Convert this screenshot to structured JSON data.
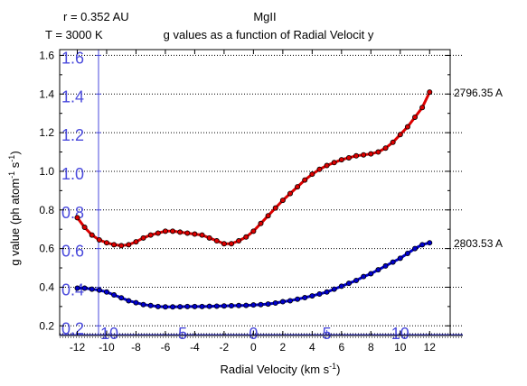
{
  "header": {
    "param_r": "r = 0.352 AU",
    "param_T": "T = 3000 K",
    "species": "MgII",
    "title": "g values as a function of Radial Velocit y"
  },
  "chart_data": {
    "type": "line",
    "xlabel": "Radial Velocity (km s-1)",
    "ylabel": "g value (ph atom-1 s-1)",
    "xlim": [
      -13.2,
      13.4
    ],
    "ylim": [
      0.15,
      1.63
    ],
    "x_ticks": [
      -12,
      -10,
      -8,
      -6,
      -4,
      -2,
      0,
      2,
      4,
      6,
      8,
      10,
      12
    ],
    "y_ticks": [
      0.2,
      0.4,
      0.6,
      0.8,
      1.0,
      1.2,
      1.4,
      1.6
    ],
    "y_tick_labels": [
      "0.2",
      "0.4",
      "0.6",
      "0.8",
      "1.0",
      "1.2",
      "1.4",
      "1.6"
    ],
    "overlay_x_ticks": [
      -10,
      -5,
      0,
      5,
      10
    ],
    "overlay_y_ticks": [
      0.2,
      0.4,
      0.6,
      0.8,
      1.0,
      1.2,
      1.4,
      1.6
    ],
    "overlay_y_tick_labels": [
      "0.2",
      "0.4",
      "0.6",
      "0.8",
      "1.0",
      "1.2",
      "1.4",
      "1.6"
    ],
    "grid": "dotted horizontal",
    "series": [
      {
        "name": "2796.35 A",
        "color": "#dd0000",
        "x": [
          -12,
          -11.5,
          -11,
          -10.5,
          -10,
          -9.5,
          -9,
          -8.5,
          -8,
          -7.5,
          -7,
          -6.5,
          -6,
          -5.5,
          -5,
          -4.5,
          -4,
          -3.5,
          -3,
          -2.5,
          -2,
          -1.5,
          -1,
          -0.5,
          0,
          0.5,
          1,
          1.5,
          2,
          2.5,
          3,
          3.5,
          4,
          4.5,
          5,
          5.5,
          6,
          6.5,
          7,
          7.5,
          8,
          8.5,
          9,
          9.5,
          10,
          10.5,
          11,
          11.5,
          12
        ],
        "values": [
          0.76,
          0.71,
          0.67,
          0.645,
          0.63,
          0.62,
          0.615,
          0.62,
          0.635,
          0.655,
          0.67,
          0.68,
          0.69,
          0.69,
          0.685,
          0.68,
          0.675,
          0.67,
          0.655,
          0.64,
          0.625,
          0.625,
          0.64,
          0.66,
          0.69,
          0.73,
          0.77,
          0.81,
          0.85,
          0.885,
          0.92,
          0.955,
          0.985,
          1.01,
          1.03,
          1.045,
          1.06,
          1.07,
          1.08,
          1.085,
          1.09,
          1.1,
          1.12,
          1.15,
          1.19,
          1.23,
          1.28,
          1.33,
          1.41
        ]
      },
      {
        "name": "2803.53 A",
        "color": "#0000cc",
        "x": [
          -12,
          -11.5,
          -11,
          -10.5,
          -10,
          -9.5,
          -9,
          -8.5,
          -8,
          -7.5,
          -7,
          -6.5,
          -6,
          -5.5,
          -5,
          -4.5,
          -4,
          -3.5,
          -3,
          -2.5,
          -2,
          -1.5,
          -1,
          -0.5,
          0,
          0.5,
          1,
          1.5,
          2,
          2.5,
          3,
          3.5,
          4,
          4.5,
          5,
          5.5,
          6,
          6.5,
          7,
          7.5,
          8,
          8.5,
          9,
          9.5,
          10,
          10.5,
          11,
          11.5,
          12
        ],
        "values": [
          0.395,
          0.395,
          0.39,
          0.385,
          0.375,
          0.36,
          0.345,
          0.33,
          0.32,
          0.31,
          0.305,
          0.3,
          0.298,
          0.298,
          0.299,
          0.3,
          0.3,
          0.3,
          0.301,
          0.302,
          0.303,
          0.304,
          0.305,
          0.306,
          0.308,
          0.31,
          0.313,
          0.318,
          0.325,
          0.33,
          0.338,
          0.346,
          0.355,
          0.365,
          0.375,
          0.39,
          0.405,
          0.42,
          0.435,
          0.455,
          0.47,
          0.49,
          0.51,
          0.53,
          0.55,
          0.575,
          0.6,
          0.62,
          0.63
        ]
      }
    ]
  }
}
